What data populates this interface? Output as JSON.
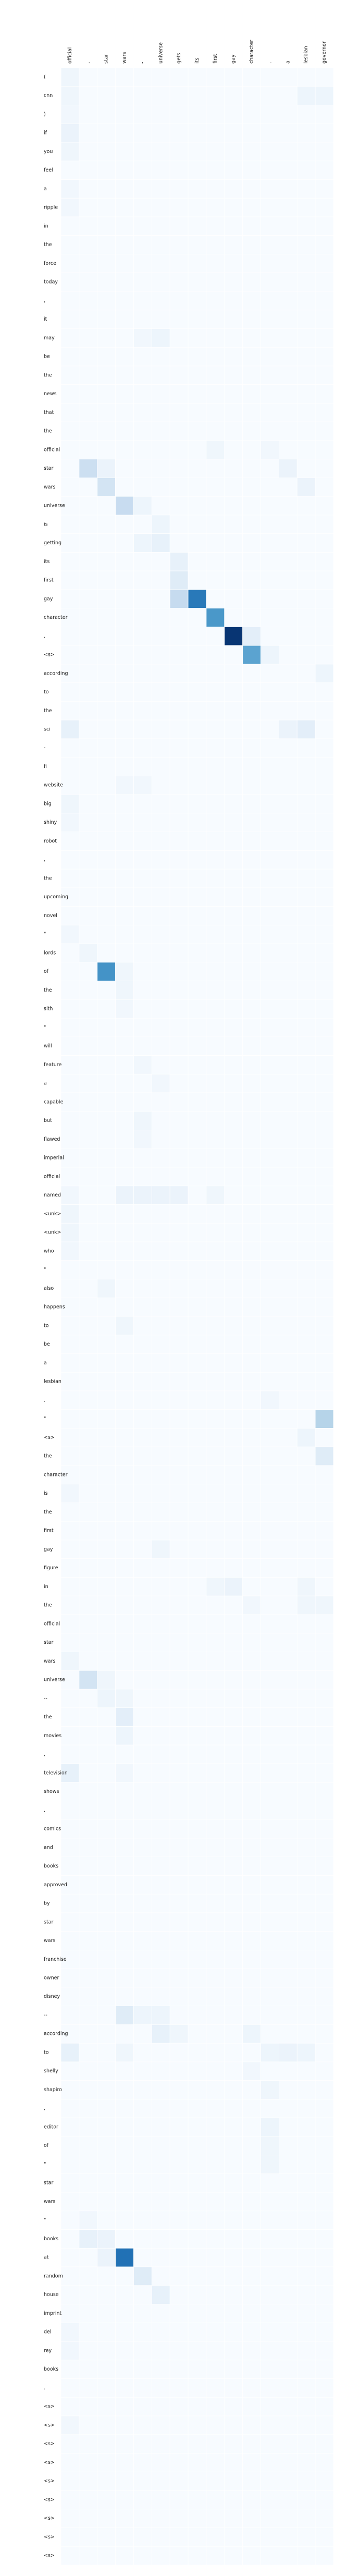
{
  "chart_data": {
    "type": "heatmap",
    "title": "",
    "xlabel": "",
    "ylabel": "",
    "x_labels": [
      "official",
      ",",
      "star",
      "wars",
      "-",
      "universe",
      "gets",
      "its",
      "first",
      "gay",
      "character",
      ".",
      "a",
      "lesbian",
      "governor"
    ],
    "y_labels": [
      "(",
      "cnn",
      ")",
      "if",
      "you",
      "feel",
      "a",
      "ripple",
      "in",
      "the",
      "force",
      "today",
      ",",
      "it",
      "may",
      "be",
      "the",
      "news",
      "that",
      "the",
      "official",
      "star",
      "wars",
      "universe",
      "is",
      "getting",
      "its",
      "first",
      "gay",
      "character",
      ".",
      "<s>",
      "according",
      "to",
      "the",
      "sci",
      "-",
      "fi",
      "website",
      "big",
      "shiny",
      "robot",
      ",",
      "the",
      "upcoming",
      "novel",
      "\"",
      "lords",
      "of",
      "the",
      "sith",
      "\"",
      "will",
      "feature",
      "a",
      "capable",
      "but",
      "flawed",
      "imperial",
      "official",
      "named",
      "<unk>",
      "<unk>",
      "who",
      "\"",
      "also",
      "happens",
      "to",
      "be",
      "a",
      "lesbian",
      ".",
      "\"",
      "<s>",
      "the",
      "character",
      "is",
      "the",
      "first",
      "gay",
      "figure",
      "in",
      "the",
      "official",
      "star",
      "wars",
      "universe",
      "--",
      "the",
      "movies",
      ",",
      "television",
      "shows",
      ",",
      "comics",
      "and",
      "books",
      "approved",
      "by",
      "star",
      "wars",
      "franchise",
      "owner",
      "disney",
      "--",
      "according",
      "to",
      "shelly",
      "shapiro",
      ",",
      "editor",
      "of",
      "\"",
      "star",
      "wars",
      "\"",
      "books",
      "at",
      "random",
      "house",
      "imprint",
      "del",
      "rey",
      "books",
      ".",
      "<s>",
      "<s>",
      "<s>",
      "<s>",
      "<s>",
      "<s>",
      "<s>",
      "<s>",
      "<s>"
    ],
    "cells": [
      {
        "r": 0,
        "c": 0,
        "v": 0.04
      },
      {
        "r": 1,
        "c": 0,
        "v": 0.04
      },
      {
        "r": 2,
        "c": 0,
        "v": 0.03
      },
      {
        "r": 3,
        "c": 0,
        "v": 0.06
      },
      {
        "r": 4,
        "c": 0,
        "v": 0.04
      },
      {
        "r": 6,
        "c": 0,
        "v": 0.03
      },
      {
        "r": 7,
        "c": 0,
        "v": 0.03
      },
      {
        "r": 1,
        "c": 13,
        "v": 0.05
      },
      {
        "r": 1,
        "c": 14,
        "v": 0.05
      },
      {
        "r": 14,
        "c": 5,
        "v": 0.05
      },
      {
        "r": 14,
        "c": 4,
        "v": 0.03
      },
      {
        "r": 20,
        "c": 8,
        "v": 0.04
      },
      {
        "r": 20,
        "c": 11,
        "v": 0.03
      },
      {
        "r": 21,
        "c": 1,
        "v": 0.22
      },
      {
        "r": 21,
        "c": 2,
        "v": 0.06
      },
      {
        "r": 21,
        "c": 12,
        "v": 0.06
      },
      {
        "r": 22,
        "c": 2,
        "v": 0.18
      },
      {
        "r": 22,
        "c": 13,
        "v": 0.06
      },
      {
        "r": 23,
        "c": 3,
        "v": 0.24
      },
      {
        "r": 23,
        "c": 4,
        "v": 0.05
      },
      {
        "r": 24,
        "c": 5,
        "v": 0.05
      },
      {
        "r": 25,
        "c": 4,
        "v": 0.05
      },
      {
        "r": 25,
        "c": 5,
        "v": 0.08
      },
      {
        "r": 26,
        "c": 6,
        "v": 0.08
      },
      {
        "r": 27,
        "c": 6,
        "v": 0.12
      },
      {
        "r": 28,
        "c": 6,
        "v": 0.25
      },
      {
        "r": 28,
        "c": 7,
        "v": 0.72
      },
      {
        "r": 29,
        "c": 8,
        "v": 0.6
      },
      {
        "r": 30,
        "c": 9,
        "v": 0.98
      },
      {
        "r": 30,
        "c": 10,
        "v": 0.1
      },
      {
        "r": 31,
        "c": 10,
        "v": 0.55
      },
      {
        "r": 31,
        "c": 11,
        "v": 0.05
      },
      {
        "r": 32,
        "c": 14,
        "v": 0.05
      },
      {
        "r": 35,
        "c": 0,
        "v": 0.08
      },
      {
        "r": 35,
        "c": 12,
        "v": 0.06
      },
      {
        "r": 35,
        "c": 13,
        "v": 0.1
      },
      {
        "r": 38,
        "c": 3,
        "v": 0.03
      },
      {
        "r": 38,
        "c": 4,
        "v": 0.03
      },
      {
        "r": 39,
        "c": 0,
        "v": 0.04
      },
      {
        "r": 40,
        "c": 0,
        "v": 0.03
      },
      {
        "r": 46,
        "c": 0,
        "v": 0.03
      },
      {
        "r": 47,
        "c": 1,
        "v": 0.04
      },
      {
        "r": 48,
        "c": 2,
        "v": 0.62
      },
      {
        "r": 48,
        "c": 3,
        "v": 0.04
      },
      {
        "r": 49,
        "c": 3,
        "v": 0.04
      },
      {
        "r": 50,
        "c": 3,
        "v": 0.03
      },
      {
        "r": 53,
        "c": 4,
        "v": 0.03
      },
      {
        "r": 54,
        "c": 5,
        "v": 0.03
      },
      {
        "r": 56,
        "c": 4,
        "v": 0.04
      },
      {
        "r": 57,
        "c": 4,
        "v": 0.03
      },
      {
        "r": 60,
        "c": 0,
        "v": 0.03
      },
      {
        "r": 60,
        "c": 3,
        "v": 0.06
      },
      {
        "r": 60,
        "c": 4,
        "v": 0.06
      },
      {
        "r": 60,
        "c": 5,
        "v": 0.06
      },
      {
        "r": 60,
        "c": 6,
        "v": 0.06
      },
      {
        "r": 60,
        "c": 8,
        "v": 0.04
      },
      {
        "r": 61,
        "c": 0,
        "v": 0.04
      },
      {
        "r": 62,
        "c": 0,
        "v": 0.04
      },
      {
        "r": 63,
        "c": 0,
        "v": 0.03
      },
      {
        "r": 65,
        "c": 2,
        "v": 0.04
      },
      {
        "r": 67,
        "c": 3,
        "v": 0.04
      },
      {
        "r": 71,
        "c": 11,
        "v": 0.03
      },
      {
        "r": 72,
        "c": 14,
        "v": 0.3
      },
      {
        "r": 73,
        "c": 13,
        "v": 0.05
      },
      {
        "r": 74,
        "c": 14,
        "v": 0.12
      },
      {
        "r": 76,
        "c": 0,
        "v": 0.03
      },
      {
        "r": 79,
        "c": 5,
        "v": 0.04
      },
      {
        "r": 81,
        "c": 9,
        "v": 0.06
      },
      {
        "r": 81,
        "c": 8,
        "v": 0.04
      },
      {
        "r": 81,
        "c": 13,
        "v": 0.04
      },
      {
        "r": 82,
        "c": 10,
        "v": 0.03
      },
      {
        "r": 82,
        "c": 13,
        "v": 0.04
      },
      {
        "r": 82,
        "c": 14,
        "v": 0.04
      },
      {
        "r": 85,
        "c": 0,
        "v": 0.04
      },
      {
        "r": 86,
        "c": 1,
        "v": 0.18
      },
      {
        "r": 86,
        "c": 2,
        "v": 0.04
      },
      {
        "r": 87,
        "c": 2,
        "v": 0.05
      },
      {
        "r": 87,
        "c": 3,
        "v": 0.04
      },
      {
        "r": 88,
        "c": 3,
        "v": 0.1
      },
      {
        "r": 89,
        "c": 3,
        "v": 0.05
      },
      {
        "r": 91,
        "c": 0,
        "v": 0.08
      },
      {
        "r": 91,
        "c": 3,
        "v": 0.03
      },
      {
        "r": 104,
        "c": 3,
        "v": 0.12
      },
      {
        "r": 104,
        "c": 4,
        "v": 0.05
      },
      {
        "r": 104,
        "c": 5,
        "v": 0.05
      },
      {
        "r": 105,
        "c": 5,
        "v": 0.08
      },
      {
        "r": 105,
        "c": 6,
        "v": 0.04
      },
      {
        "r": 105,
        "c": 10,
        "v": 0.05
      },
      {
        "r": 106,
        "c": 0,
        "v": 0.08
      },
      {
        "r": 106,
        "c": 3,
        "v": 0.04
      },
      {
        "r": 106,
        "c": 11,
        "v": 0.05
      },
      {
        "r": 106,
        "c": 12,
        "v": 0.06
      },
      {
        "r": 106,
        "c": 13,
        "v": 0.05
      },
      {
        "r": 107,
        "c": 10,
        "v": 0.03
      },
      {
        "r": 108,
        "c": 11,
        "v": 0.04
      },
      {
        "r": 110,
        "c": 11,
        "v": 0.05
      },
      {
        "r": 111,
        "c": 11,
        "v": 0.04
      },
      {
        "r": 112,
        "c": 11,
        "v": 0.04
      },
      {
        "r": 115,
        "c": 1,
        "v": 0.03
      },
      {
        "r": 116,
        "c": 1,
        "v": 0.08
      },
      {
        "r": 116,
        "c": 2,
        "v": 0.06
      },
      {
        "r": 117,
        "c": 3,
        "v": 0.75
      },
      {
        "r": 117,
        "c": 2,
        "v": 0.06
      },
      {
        "r": 118,
        "c": 4,
        "v": 0.12
      },
      {
        "r": 119,
        "c": 5,
        "v": 0.08
      },
      {
        "r": 121,
        "c": 0,
        "v": 0.03
      },
      {
        "r": 122,
        "c": 0,
        "v": 0.03
      },
      {
        "r": 126,
        "c": 0,
        "v": 0.03
      }
    ],
    "vmin": 0,
    "vmax": 1,
    "colormap": "Blues",
    "grid": true,
    "legend": "none"
  }
}
